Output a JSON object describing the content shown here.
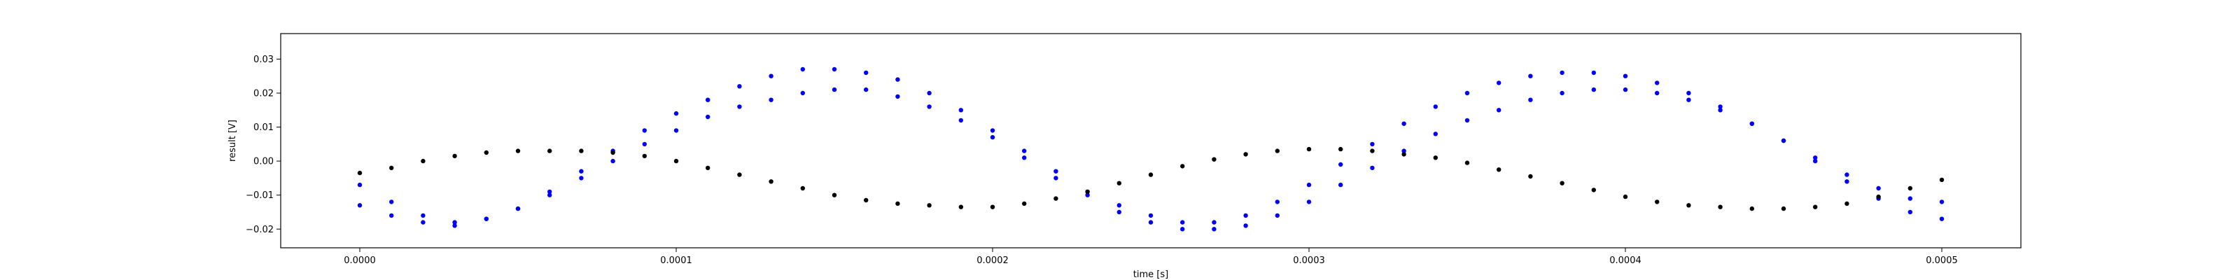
{
  "chart_data": {
    "type": "scatter",
    "xlabel": "time [s]",
    "ylabel": "result [V]",
    "xlim": [
      -2.5e-05,
      0.000525
    ],
    "ylim": [
      -0.0255,
      0.0375
    ],
    "xticks": [
      0.0,
      0.0001,
      0.0002,
      0.0003,
      0.0004,
      0.0005
    ],
    "xtick_labels": [
      "0.0000",
      "0.0001",
      "0.0002",
      "0.0003",
      "0.0004",
      "0.0005"
    ],
    "yticks": [
      -0.02,
      -0.01,
      0.0,
      0.01,
      0.02,
      0.03
    ],
    "ytick_labels": [
      "−0.02",
      "−0.01",
      "0.00",
      "0.01",
      "0.02",
      "0.03"
    ],
    "grid": false,
    "legend": "none",
    "series": [
      {
        "color": "#0000ff",
        "marker": "dot",
        "x": [
          0.0,
          1e-05,
          2e-05,
          3e-05,
          4e-05,
          5e-05,
          6e-05,
          7e-05,
          8e-05,
          9e-05,
          0.0001,
          0.00011,
          0.00012,
          0.00013,
          0.00014,
          0.00015,
          0.00016,
          0.00017,
          0.00018,
          0.00019,
          0.0002,
          0.00021,
          0.00022,
          0.00023,
          0.00024,
          0.00025,
          0.00026,
          0.00027,
          0.00028,
          0.00029,
          0.0003,
          0.00031,
          0.00032,
          0.00033,
          0.00034,
          0.00035,
          0.00036,
          0.00037,
          0.00038,
          0.00039,
          0.0004,
          0.00041,
          0.00042,
          0.00043,
          0.00044,
          0.00045,
          0.00046,
          0.00047,
          0.00048,
          0.00049,
          0.0005
        ],
        "y": [
          -0.007,
          -0.012,
          -0.016,
          -0.018,
          -0.017,
          -0.014,
          -0.009,
          -0.003,
          0.003,
          0.009,
          0.014,
          0.018,
          0.022,
          0.025,
          0.027,
          0.027,
          0.026,
          0.024,
          0.02,
          0.015,
          0.009,
          0.003,
          -0.003,
          -0.009,
          -0.013,
          -0.016,
          -0.018,
          -0.018,
          -0.016,
          -0.012,
          -0.007,
          -0.001,
          0.005,
          0.011,
          0.016,
          0.02,
          0.023,
          0.025,
          0.026,
          0.026,
          0.025,
          0.023,
          0.02,
          0.016,
          0.011,
          0.006,
          0.001,
          -0.004,
          -0.008,
          -0.011,
          -0.012
        ]
      },
      {
        "color": "#0000ff",
        "marker": "dot",
        "x": [
          0.0,
          1e-05,
          2e-05,
          3e-05,
          4e-05,
          5e-05,
          6e-05,
          7e-05,
          8e-05,
          9e-05,
          0.0001,
          0.00011,
          0.00012,
          0.00013,
          0.00014,
          0.00015,
          0.00016,
          0.00017,
          0.00018,
          0.00019,
          0.0002,
          0.00021,
          0.00022,
          0.00023,
          0.00024,
          0.00025,
          0.00026,
          0.00027,
          0.00028,
          0.00029,
          0.0003,
          0.00031,
          0.00032,
          0.00033,
          0.00034,
          0.00035,
          0.00036,
          0.00037,
          0.00038,
          0.00039,
          0.0004,
          0.00041,
          0.00042,
          0.00043,
          0.00044,
          0.00045,
          0.00046,
          0.00047,
          0.00048,
          0.00049,
          0.0005
        ],
        "y": [
          -0.013,
          -0.016,
          -0.018,
          -0.019,
          -0.017,
          -0.014,
          -0.01,
          -0.005,
          0.0,
          0.005,
          0.009,
          0.013,
          0.016,
          0.018,
          0.02,
          0.021,
          0.021,
          0.019,
          0.016,
          0.012,
          0.007,
          0.001,
          -0.005,
          -0.01,
          -0.015,
          -0.018,
          -0.02,
          -0.02,
          -0.019,
          -0.016,
          -0.012,
          -0.007,
          -0.002,
          0.003,
          0.008,
          0.012,
          0.015,
          0.018,
          0.02,
          0.021,
          0.021,
          0.02,
          0.018,
          0.015,
          0.011,
          0.006,
          0.0,
          -0.006,
          -0.011,
          -0.015,
          -0.017
        ]
      },
      {
        "color": "#000000",
        "marker": "dot",
        "x": [
          0.0,
          1e-05,
          2e-05,
          3e-05,
          4e-05,
          5e-05,
          6e-05,
          7e-05,
          8e-05,
          9e-05,
          0.0001,
          0.00011,
          0.00012,
          0.00013,
          0.00014,
          0.00015,
          0.00016,
          0.00017,
          0.00018,
          0.00019,
          0.0002,
          0.00021,
          0.00022,
          0.00023,
          0.00024,
          0.00025,
          0.00026,
          0.00027,
          0.00028,
          0.00029,
          0.0003,
          0.00031,
          0.00032,
          0.00033,
          0.00034,
          0.00035,
          0.00036,
          0.00037,
          0.00038,
          0.00039,
          0.0004,
          0.00041,
          0.00042,
          0.00043,
          0.00044,
          0.00045,
          0.00046,
          0.00047,
          0.00048,
          0.00049,
          0.0005
        ],
        "y": [
          -0.0035,
          -0.002,
          0.0,
          0.0015,
          0.0025,
          0.003,
          0.003,
          0.003,
          0.0025,
          0.0015,
          0.0,
          -0.002,
          -0.004,
          -0.006,
          -0.008,
          -0.01,
          -0.0115,
          -0.0125,
          -0.013,
          -0.0135,
          -0.0135,
          -0.0125,
          -0.011,
          -0.009,
          -0.0065,
          -0.004,
          -0.0015,
          0.0005,
          0.002,
          0.003,
          0.0035,
          0.0035,
          0.003,
          0.002,
          0.001,
          -0.0005,
          -0.0025,
          -0.0045,
          -0.0065,
          -0.0085,
          -0.0105,
          -0.012,
          -0.013,
          -0.0135,
          -0.014,
          -0.014,
          -0.0135,
          -0.0125,
          -0.0105,
          -0.008,
          -0.0055
        ]
      }
    ]
  }
}
